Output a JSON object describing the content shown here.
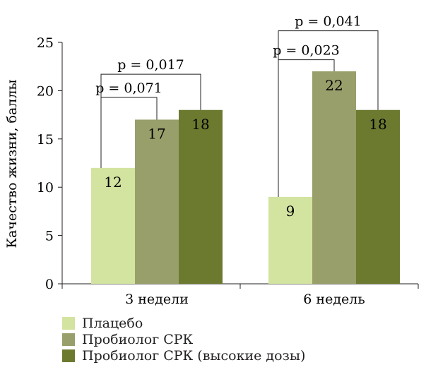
{
  "chart_data": {
    "type": "bar",
    "title": "",
    "xlabel": "",
    "ylabel": "Качество жизни, баллы",
    "ylim": [
      0,
      25
    ],
    "yticks": [
      0,
      5,
      10,
      15,
      20,
      25
    ],
    "grid": false,
    "legend_position": "bottom-left",
    "categories": [
      "3 недели",
      "6 недель"
    ],
    "series": [
      {
        "name": "Плацебо",
        "color": "#d3e3a0",
        "values": [
          12,
          9
        ],
        "labels": [
          "12",
          "9"
        ]
      },
      {
        "name": "Пробиолог СРК",
        "color": "#999f6a",
        "values": [
          17,
          22
        ],
        "labels": [
          "17",
          "22"
        ]
      },
      {
        "name": "Пробиолог СРК (высокие дозы)",
        "color": "#6c7a30",
        "values": [
          18,
          18
        ],
        "labels": [
          "18",
          "18"
        ]
      }
    ],
    "annotations": [
      {
        "category": 0,
        "from_series": 0,
        "to_series": 1,
        "text": "p = 0,071",
        "level": 19.3
      },
      {
        "category": 0,
        "from_series": 0,
        "to_series": 2,
        "text": "p = 0,017",
        "level": 21.7
      },
      {
        "category": 1,
        "from_series": 0,
        "to_series": 1,
        "text": "p = 0,023",
        "level": 23.2
      },
      {
        "category": 1,
        "from_series": 0,
        "to_series": 2,
        "text": "p = 0,041",
        "level": 26.2
      }
    ]
  }
}
